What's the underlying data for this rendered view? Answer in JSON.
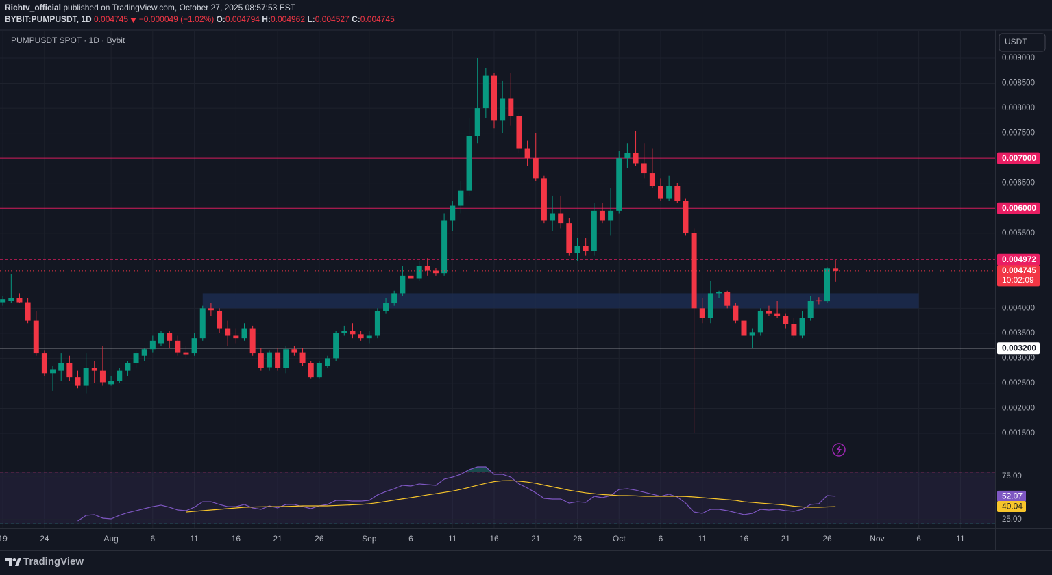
{
  "header": {
    "author": "Richtv_official",
    "published": " published on TradingView.com, October 27, 2025 08:57:53 EST",
    "symbol": "BYBIT:PUMPUSDT, 1D",
    "change": "−0.000049 (−1.02%)",
    "open_label": "O:",
    "high_label": "H:",
    "low_label": "L:",
    "close_label": "C:"
  },
  "currency": "USDT",
  "brand": "TradingView",
  "chart_data": [
    {
      "type": "candlestick",
      "title": "PUMPUSDT SPOT · 1D · Bybit",
      "x": [
        "2025-07-19",
        "2025-07-20",
        "2025-07-21",
        "2025-07-22",
        "2025-07-23",
        "2025-07-24",
        "2025-07-25",
        "2025-07-26",
        "2025-07-27",
        "2025-07-28",
        "2025-07-29",
        "2025-07-30",
        "2025-07-31",
        "2025-08-01",
        "2025-08-02",
        "2025-08-03",
        "2025-08-04",
        "2025-08-05",
        "2025-08-06",
        "2025-08-07",
        "2025-08-08",
        "2025-08-09",
        "2025-08-10",
        "2025-08-11",
        "2025-08-12",
        "2025-08-13",
        "2025-08-14",
        "2025-08-15",
        "2025-08-16",
        "2025-08-17",
        "2025-08-18",
        "2025-08-19",
        "2025-08-20",
        "2025-08-21",
        "2025-08-22",
        "2025-08-23",
        "2025-08-24",
        "2025-08-25",
        "2025-08-26",
        "2025-08-27",
        "2025-08-28",
        "2025-08-29",
        "2025-08-30",
        "2025-08-31",
        "2025-09-01",
        "2025-09-02",
        "2025-09-03",
        "2025-09-04",
        "2025-09-05",
        "2025-09-06",
        "2025-09-07",
        "2025-09-08",
        "2025-09-09",
        "2025-09-10",
        "2025-09-11",
        "2025-09-12",
        "2025-09-13",
        "2025-09-14",
        "2025-09-15",
        "2025-09-16",
        "2025-09-17",
        "2025-09-18",
        "2025-09-19",
        "2025-09-20",
        "2025-09-21",
        "2025-09-22",
        "2025-09-23",
        "2025-09-24",
        "2025-09-25",
        "2025-09-26",
        "2025-09-27",
        "2025-09-28",
        "2025-09-29",
        "2025-09-30",
        "2025-10-01",
        "2025-10-02",
        "2025-10-03",
        "2025-10-04",
        "2025-10-05",
        "2025-10-06",
        "2025-10-07",
        "2025-10-08",
        "2025-10-09",
        "2025-10-10",
        "2025-10-11",
        "2025-10-12",
        "2025-10-13",
        "2025-10-14",
        "2025-10-15",
        "2025-10-16",
        "2025-10-17",
        "2025-10-18",
        "2025-10-19",
        "2025-10-20",
        "2025-10-21",
        "2025-10-22",
        "2025-10-23",
        "2025-10-24",
        "2025-10-25",
        "2025-10-26",
        "2025-10-27"
      ],
      "open": [
        0.00412,
        0.00415,
        0.0042,
        0.00412,
        0.00375,
        0.0031,
        0.0027,
        0.00275,
        0.0029,
        0.00262,
        0.00245,
        0.0028,
        0.00275,
        0.00248,
        0.00255,
        0.00275,
        0.0029,
        0.00305,
        0.00318,
        0.0033,
        0.0035,
        0.00335,
        0.00312,
        0.0031,
        0.0034,
        0.004,
        0.00395,
        0.0036,
        0.00345,
        0.0034,
        0.0036,
        0.0031,
        0.00282,
        0.00312,
        0.0028,
        0.00318,
        0.00312,
        0.0029,
        0.00262,
        0.00285,
        0.003,
        0.0035,
        0.00355,
        0.00348,
        0.0034,
        0.00345,
        0.00395,
        0.0041,
        0.0043,
        0.00465,
        0.0046,
        0.00485,
        0.00475,
        0.0047,
        0.00575,
        0.00605,
        0.00635,
        0.00745,
        0.008,
        0.00865,
        0.00775,
        0.0082,
        0.00785,
        0.0072,
        0.007,
        0.0066,
        0.00575,
        0.0059,
        0.0057,
        0.0051,
        0.00525,
        0.00515,
        0.00595,
        0.00575,
        0.00595,
        0.007,
        0.0071,
        0.0069,
        0.0067,
        0.00645,
        0.0062,
        0.00645,
        0.00615,
        0.0055,
        0.004,
        0.0038,
        0.0043,
        0.00432,
        0.00405,
        0.00375,
        0.00345,
        0.00352,
        0.00395,
        0.0039,
        0.00385,
        0.00368,
        0.00345,
        0.0038,
        0.00416,
        0.00414,
        0.004794
      ],
      "high": [
        0.00425,
        0.00468,
        0.0043,
        0.0042,
        0.00395,
        0.00315,
        0.00285,
        0.0031,
        0.00305,
        0.00275,
        0.0031,
        0.00295,
        0.00325,
        0.00265,
        0.0028,
        0.00295,
        0.00315,
        0.0032,
        0.00345,
        0.00355,
        0.00355,
        0.00345,
        0.00325,
        0.0035,
        0.00405,
        0.0041,
        0.004,
        0.00375,
        0.0036,
        0.0037,
        0.00365,
        0.0032,
        0.00315,
        0.0032,
        0.00325,
        0.00325,
        0.0032,
        0.00295,
        0.00295,
        0.00305,
        0.00355,
        0.00365,
        0.0037,
        0.00355,
        0.00355,
        0.004,
        0.0042,
        0.00435,
        0.00485,
        0.0049,
        0.00495,
        0.005,
        0.0048,
        0.0059,
        0.00615,
        0.00655,
        0.0078,
        0.009,
        0.0088,
        0.0087,
        0.00855,
        0.0087,
        0.0079,
        0.00735,
        0.0075,
        0.00665,
        0.00625,
        0.00625,
        0.0058,
        0.0054,
        0.0054,
        0.0061,
        0.0061,
        0.0064,
        0.00715,
        0.0073,
        0.00755,
        0.0073,
        0.0072,
        0.0066,
        0.00665,
        0.0065,
        0.0062,
        0.0056,
        0.0042,
        0.00455,
        0.00435,
        0.00435,
        0.0041,
        0.00385,
        0.0036,
        0.004,
        0.00405,
        0.00415,
        0.0039,
        0.0038,
        0.00395,
        0.00425,
        0.00422,
        0.00482,
        0.004962
      ],
      "low": [
        0.00405,
        0.0041,
        0.0041,
        0.0037,
        0.00305,
        0.00265,
        0.00235,
        0.00255,
        0.00255,
        0.0024,
        0.0023,
        0.0025,
        0.00245,
        0.00245,
        0.0025,
        0.00265,
        0.0028,
        0.00295,
        0.00312,
        0.00325,
        0.0032,
        0.00305,
        0.003,
        0.00305,
        0.00335,
        0.00385,
        0.0035,
        0.00325,
        0.0033,
        0.00335,
        0.00305,
        0.00275,
        0.00275,
        0.00275,
        0.0027,
        0.00305,
        0.00285,
        0.0026,
        0.0026,
        0.0028,
        0.00295,
        0.00345,
        0.0034,
        0.00335,
        0.0033,
        0.0034,
        0.0039,
        0.00405,
        0.00425,
        0.00455,
        0.00455,
        0.00465,
        0.00465,
        0.00465,
        0.00555,
        0.0059,
        0.00625,
        0.0073,
        0.0078,
        0.0076,
        0.0075,
        0.00765,
        0.0071,
        0.00685,
        0.00655,
        0.0057,
        0.00555,
        0.0056,
        0.00505,
        0.00495,
        0.00505,
        0.00505,
        0.0057,
        0.00545,
        0.0059,
        0.0068,
        0.00685,
        0.0066,
        0.0064,
        0.00615,
        0.00615,
        0.0061,
        0.00545,
        0.0015,
        0.0037,
        0.0037,
        0.0042,
        0.004,
        0.0037,
        0.0034,
        0.0032,
        0.00345,
        0.00385,
        0.0038,
        0.0036,
        0.0034,
        0.0034,
        0.00375,
        0.00408,
        0.0041,
        0.004527
      ],
      "close": [
        0.00418,
        0.0042,
        0.00412,
        0.00375,
        0.0031,
        0.0027,
        0.00278,
        0.0029,
        0.00262,
        0.00245,
        0.0028,
        0.00275,
        0.00252,
        0.00255,
        0.00275,
        0.0029,
        0.0031,
        0.00318,
        0.00335,
        0.0035,
        0.00335,
        0.00312,
        0.00308,
        0.0034,
        0.004,
        0.00396,
        0.0036,
        0.00345,
        0.0034,
        0.0036,
        0.0031,
        0.0028,
        0.00312,
        0.0028,
        0.00318,
        0.00312,
        0.0029,
        0.00262,
        0.0029,
        0.003,
        0.0035,
        0.00355,
        0.00348,
        0.0034,
        0.00345,
        0.00395,
        0.0041,
        0.0043,
        0.00465,
        0.0046,
        0.00485,
        0.00475,
        0.0047,
        0.00575,
        0.00605,
        0.00635,
        0.00745,
        0.008,
        0.00865,
        0.00775,
        0.0082,
        0.00785,
        0.0072,
        0.007,
        0.0066,
        0.00575,
        0.0059,
        0.0057,
        0.0051,
        0.00525,
        0.00515,
        0.00595,
        0.00575,
        0.00595,
        0.007,
        0.0071,
        0.0069,
        0.0067,
        0.00645,
        0.0062,
        0.00645,
        0.00615,
        0.0055,
        0.004,
        0.0038,
        0.0043,
        0.00432,
        0.00405,
        0.00375,
        0.00345,
        0.00352,
        0.00395,
        0.0039,
        0.00385,
        0.00368,
        0.00345,
        0.0038,
        0.00415,
        0.00414,
        0.004794,
        0.004745
      ],
      "up_color": "#089981",
      "down_color": "#f23645",
      "xlim": [
        "2025-07-18",
        "2025-11-15"
      ],
      "xticks": [
        {
          "value": "2025-07-19",
          "label": "19"
        },
        {
          "value": "2025-07-24",
          "label": "24"
        },
        {
          "value": "2025-08-01",
          "label": "Aug"
        },
        {
          "value": "2025-08-06",
          "label": "6"
        },
        {
          "value": "2025-08-11",
          "label": "11"
        },
        {
          "value": "2025-08-16",
          "label": "16"
        },
        {
          "value": "2025-08-21",
          "label": "21"
        },
        {
          "value": "2025-08-26",
          "label": "26"
        },
        {
          "value": "2025-09-01",
          "label": "Sep"
        },
        {
          "value": "2025-09-06",
          "label": "6"
        },
        {
          "value": "2025-09-11",
          "label": "11"
        },
        {
          "value": "2025-09-16",
          "label": "16"
        },
        {
          "value": "2025-09-21",
          "label": "21"
        },
        {
          "value": "2025-09-26",
          "label": "26"
        },
        {
          "value": "2025-10-01",
          "label": "Oct"
        },
        {
          "value": "2025-10-06",
          "label": "6"
        },
        {
          "value": "2025-10-11",
          "label": "11"
        },
        {
          "value": "2025-10-16",
          "label": "16"
        },
        {
          "value": "2025-10-21",
          "label": "21"
        },
        {
          "value": "2025-10-26",
          "label": "26"
        },
        {
          "value": "2025-11-01",
          "label": "Nov"
        },
        {
          "value": "2025-11-06",
          "label": "6"
        },
        {
          "value": "2025-11-11",
          "label": "11"
        }
      ],
      "ylim": [
        0.001,
        0.0095
      ],
      "yticks": [
        {
          "value": 0.009,
          "label": "0.009000"
        },
        {
          "value": 0.0085,
          "label": "0.008500"
        },
        {
          "value": 0.008,
          "label": "0.008000"
        },
        {
          "value": 0.0075,
          "label": "0.007500"
        },
        {
          "value": 0.0065,
          "label": "0.006500"
        },
        {
          "value": 0.0055,
          "label": "0.005500"
        },
        {
          "value": 0.004,
          "label": "0.004000"
        },
        {
          "value": 0.0035,
          "label": "0.003500"
        },
        {
          "value": 0.003,
          "label": "0.003000"
        },
        {
          "value": 0.0025,
          "label": "0.002500"
        },
        {
          "value": 0.002,
          "label": "0.002000"
        },
        {
          "value": 0.0015,
          "label": "0.001500"
        }
      ],
      "grid": true,
      "hlines": [
        {
          "value": 0.007,
          "label": "0.007000",
          "color": "#e91e63",
          "style": "solid"
        },
        {
          "value": 0.006,
          "label": "0.006000",
          "color": "#e91e63",
          "style": "solid"
        },
        {
          "value": 0.004972,
          "label": "0.004972",
          "color": "#e91e63",
          "style": "dashed"
        },
        {
          "value": 0.0032,
          "label": "0.003200",
          "color": "#ffffff",
          "style": "solid"
        }
      ],
      "zone": {
        "from": "2025-08-12",
        "to": "2025-11-06",
        "low": 0.004,
        "high": 0.0043,
        "color": "#1c2c4f"
      },
      "countdown": "10:02:09"
    },
    {
      "type": "line",
      "ylim": [
        15,
        95
      ],
      "yticks": [
        {
          "value": 75,
          "label": "75.00"
        },
        {
          "value": 25,
          "label": "25.00"
        }
      ],
      "levels": [
        {
          "value": 80,
          "color": "#f23676"
        },
        {
          "value": 50,
          "color": "#787b86"
        },
        {
          "value": 20,
          "color": "#26a69a"
        }
      ],
      "band_color": "#7e57c2",
      "overbought_color": "#26a69a",
      "series": [
        {
          "color": "#7e57c2",
          "values": [
            null,
            null,
            null,
            null,
            null,
            null,
            null,
            null,
            null,
            23.4,
            29.8,
            30.6,
            26.6,
            25.8,
            29.8,
            33,
            35.3,
            37.7,
            40,
            41.7,
            39.3,
            36.1,
            35.3,
            39.3,
            45.6,
            45.6,
            42.5,
            40,
            40,
            42.5,
            38.5,
            36.9,
            40.9,
            38.5,
            42.5,
            42.5,
            40,
            37.7,
            40.9,
            42.5,
            47.2,
            47.2,
            46.4,
            46.4,
            47.2,
            53.6,
            57.5,
            60.7,
            64.7,
            63.9,
            66.3,
            65.5,
            64.7,
            71.8,
            74.2,
            77.4,
            82.9,
            86.1,
            86.1,
            77.4,
            77.4,
            74.2,
            66.3,
            61.5,
            56,
            49.6,
            48.8,
            48.8,
            44,
            45.6,
            44.8,
            52,
            50.4,
            52.8,
            59.9,
            60.7,
            59.1,
            56.7,
            54.4,
            52,
            54.4,
            51.2,
            44,
            33.7,
            32.1,
            36.9,
            36.9,
            35.3,
            33,
            30.6,
            32.1,
            36.9,
            36.1,
            36.9,
            35.3,
            34.5,
            36.9,
            42.5,
            43.3,
            52.8,
            52.07
          ]
        },
        {
          "color": "#f7c52b",
          "values": [
            null,
            null,
            null,
            null,
            null,
            null,
            null,
            null,
            null,
            null,
            null,
            null,
            null,
            null,
            null,
            null,
            null,
            null,
            null,
            null,
            null,
            null,
            33.7,
            34.5,
            35.3,
            36.1,
            36.9,
            37.7,
            38.5,
            39.3,
            39.6,
            39.8,
            40,
            40,
            40.2,
            40.5,
            40.9,
            40.9,
            40.9,
            40.9,
            41.3,
            41.7,
            42.1,
            42.5,
            43.3,
            44.5,
            46,
            47.5,
            49,
            50.4,
            52,
            53.6,
            55,
            56.5,
            58,
            60,
            62.3,
            64.7,
            67,
            69,
            70,
            70.2,
            69.5,
            68.5,
            67,
            65,
            63,
            61,
            59,
            57.5,
            56,
            55,
            54,
            53.5,
            52.8,
            52.8,
            52.5,
            52,
            52,
            52,
            52,
            52,
            51.8,
            51.2,
            50.4,
            49.6,
            48.8,
            48,
            47.2,
            45.6,
            44.8,
            44,
            43.3,
            42.5,
            41.7,
            40.5,
            39.7,
            39.3,
            39.3,
            39.7,
            40.04
          ]
        }
      ]
    }
  ]
}
